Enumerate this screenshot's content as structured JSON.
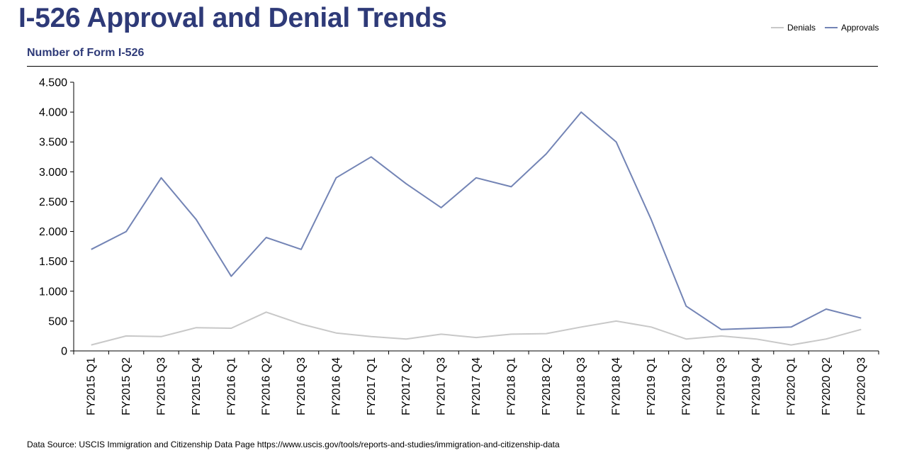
{
  "header": {
    "title": "I-526 Approval and Denial Trends",
    "subtitle": "Number of Form I-526"
  },
  "footer": {
    "source": "Data Source: USCIS Immigration and Citizenship Data Page https://www.uscis.gov/tools/reports-and-studies/immigration-and-citizenship-data"
  },
  "colors": {
    "denials": "#c8c8c8",
    "approvals": "#7384b5",
    "title": "#2e3a78"
  },
  "chart_data": {
    "type": "line",
    "title": "I-526 Approval and Denial Trends",
    "subtitle": "Number of Form I-526",
    "xlabel": "",
    "ylabel": "",
    "categories": [
      "FY2015 Q1",
      "FY2015 Q2",
      "FY2015 Q3",
      "FY2015 Q4",
      "FY2016 Q1",
      "FY2016 Q2",
      "FY2016 Q3",
      "FY2016 Q4",
      "FY2017 Q1",
      "FY2017 Q2",
      "FY2017 Q3",
      "FY2017 Q4",
      "FY2018 Q1",
      "FY2018 Q2",
      "FY2018 Q3",
      "FY2018 Q4",
      "FY2019 Q1",
      "FY2019 Q2",
      "FY2019 Q3",
      "FY2019 Q4",
      "FY2020 Q1",
      "FY2020 Q2",
      "FY2020 Q3"
    ],
    "series": [
      {
        "name": "Denials",
        "color": "#c8c8c8",
        "values": [
          100,
          250,
          240,
          390,
          380,
          650,
          450,
          300,
          240,
          200,
          280,
          225,
          280,
          290,
          400,
          500,
          400,
          200,
          250,
          200,
          100,
          200,
          360
        ]
      },
      {
        "name": "Approvals",
        "color": "#7384b5",
        "values": [
          1700,
          2000,
          2900,
          2200,
          1250,
          1900,
          1700,
          2900,
          3250,
          2800,
          2400,
          2900,
          2750,
          3300,
          4000,
          3500,
          2200,
          750,
          360,
          380,
          400,
          700,
          550
        ]
      }
    ],
    "ylim": [
      0,
      4500
    ],
    "yticks": [
      0,
      500,
      1000,
      1500,
      2000,
      2500,
      3000,
      3500,
      4000,
      4500
    ],
    "ytick_labels": [
      "0",
      "500",
      "1.000",
      "1.500",
      "2.000",
      "2.500",
      "3.000",
      "3.500",
      "4.000",
      "4.500"
    ],
    "grid": false,
    "legend": "top-right"
  }
}
